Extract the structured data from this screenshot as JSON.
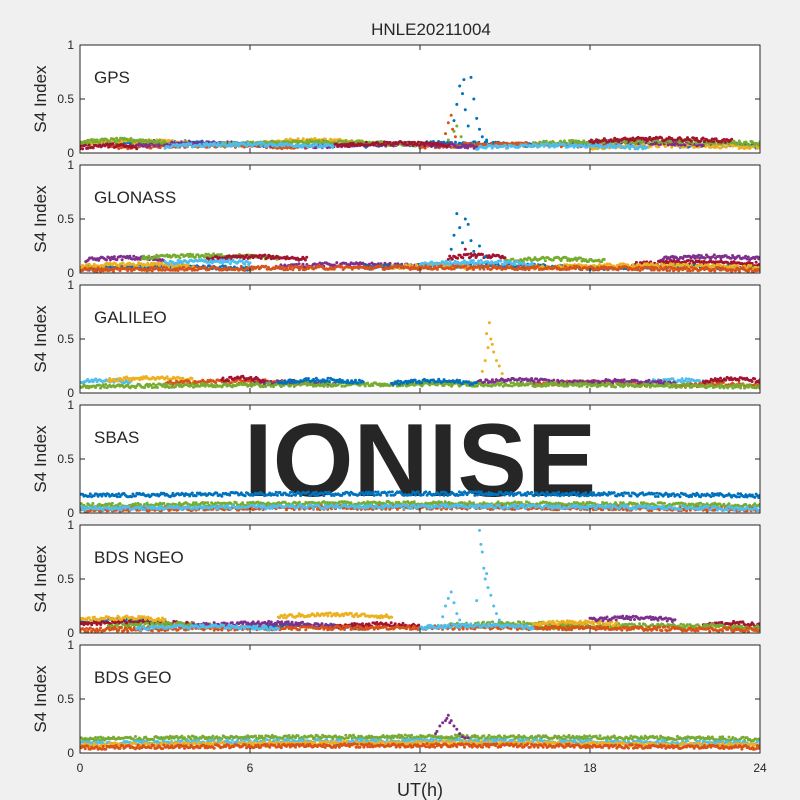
{
  "figure": {
    "title": "HNLE20211004",
    "watermark": "IONISE",
    "background": "#f0f0f0",
    "axes_background": "#ffffff",
    "watermark_color": "#e6e6e6"
  },
  "chart_data": {
    "type": "scatter",
    "title": "HNLE20211004",
    "xlabel": "UT(h)",
    "ylabel": "S4 Index",
    "xlim": [
      0,
      24
    ],
    "ylim": [
      0,
      1
    ],
    "xticks": [
      0,
      6,
      12,
      18,
      24
    ],
    "yticks": [
      0,
      0.5,
      1
    ],
    "ytick_labels": [
      "0",
      "0.5",
      "1"
    ],
    "grid": false,
    "color_order": [
      "#0072bd",
      "#d95319",
      "#edb120",
      "#7e2f8e",
      "#77ac30",
      "#4dbeee",
      "#a2142f"
    ],
    "panels": [
      {
        "label": "GPS",
        "baseline": 0.07,
        "background_tracks": [
          {
            "color": "#0072bd",
            "segments": [
              [
                0,
                5.5,
                0.08
              ],
              [
                10,
                16,
                0.07
              ],
              [
                21,
                24,
                0.06
              ]
            ]
          },
          {
            "color": "#d95319",
            "segments": [
              [
                1,
                8,
                0.05
              ],
              [
                12,
                19,
                0.06
              ]
            ]
          },
          {
            "color": "#edb120",
            "segments": [
              [
                0,
                4,
                0.09
              ],
              [
                6.5,
                10,
                0.1
              ],
              [
                18,
                24,
                0.05
              ]
            ]
          },
          {
            "color": "#7e2f8e",
            "segments": [
              [
                2,
                7,
                0.07
              ],
              [
                8,
                14,
                0.06
              ],
              [
                17,
                22,
                0.08
              ]
            ]
          },
          {
            "color": "#77ac30",
            "segments": [
              [
                0,
                3,
                0.1
              ],
              [
                5,
                12,
                0.08
              ],
              [
                16,
                24,
                0.09
              ]
            ]
          },
          {
            "color": "#4dbeee",
            "segments": [
              [
                3,
                9,
                0.06
              ],
              [
                14,
                20,
                0.05
              ]
            ]
          },
          {
            "color": "#a2142f",
            "segments": [
              [
                0,
                2,
                0.05
              ],
              [
                9,
                13,
                0.07
              ],
              [
                18,
                23,
                0.11
              ]
            ]
          }
        ],
        "events": [
          {
            "color": "#0072bd",
            "points": [
              [
                13.2,
                0.3
              ],
              [
                13.3,
                0.45
              ],
              [
                13.4,
                0.62
              ],
              [
                13.5,
                0.55
              ],
              [
                13.55,
                0.68
              ],
              [
                13.6,
                0.4
              ],
              [
                13.7,
                0.25
              ],
              [
                13.8,
                0.7
              ],
              [
                13.9,
                0.5
              ],
              [
                14.0,
                0.32
              ],
              [
                14.1,
                0.22
              ],
              [
                14.2,
                0.15
              ],
              [
                14.35,
                0.12
              ]
            ]
          },
          {
            "color": "#d95319",
            "points": [
              [
                12.9,
                0.18
              ],
              [
                13.0,
                0.28
              ],
              [
                13.1,
                0.35
              ],
              [
                13.15,
                0.22
              ],
              [
                13.25,
                0.15
              ]
            ]
          },
          {
            "color": "#77ac30",
            "points": [
              [
                13.0,
                0.12
              ],
              [
                13.2,
                0.2
              ],
              [
                13.3,
                0.25
              ],
              [
                13.45,
                0.15
              ]
            ]
          }
        ]
      },
      {
        "label": "GLONASS",
        "baseline": 0.06,
        "background_tracks": [
          {
            "color": "#7e2f8e",
            "segments": [
              [
                0.2,
                3,
                0.12
              ],
              [
                7,
                12,
                0.06
              ],
              [
                20.5,
                24,
                0.13
              ]
            ]
          },
          {
            "color": "#77ac30",
            "segments": [
              [
                2.2,
                7,
                0.14
              ],
              [
                15,
                18.5,
                0.11
              ]
            ]
          },
          {
            "color": "#a2142f",
            "segments": [
              [
                4.5,
                8,
                0.13
              ],
              [
                13,
                15,
                0.14
              ],
              [
                19.5,
                24,
                0.08
              ]
            ]
          },
          {
            "color": "#0072bd",
            "segments": [
              [
                0,
                6,
                0.04
              ],
              [
                10,
                18,
                0.05
              ],
              [
                18,
                24,
                0.04
              ]
            ]
          },
          {
            "color": "#edb120",
            "segments": [
              [
                0,
                4,
                0.06
              ],
              [
                11,
                14,
                0.05
              ],
              [
                16,
                24,
                0.05
              ]
            ]
          },
          {
            "color": "#4dbeee",
            "segments": [
              [
                3,
                6,
                0.09
              ],
              [
                12,
                16,
                0.08
              ]
            ]
          },
          {
            "color": "#d95319",
            "segments": [
              [
                0,
                24,
                0.03
              ]
            ]
          }
        ],
        "events": [
          {
            "color": "#0072bd",
            "points": [
              [
                13.2,
                0.35
              ],
              [
                13.3,
                0.55
              ],
              [
                13.4,
                0.42
              ],
              [
                13.5,
                0.28
              ],
              [
                13.6,
                0.5
              ],
              [
                13.7,
                0.45
              ],
              [
                13.8,
                0.3
              ],
              [
                13.9,
                0.2
              ],
              [
                14.1,
                0.25
              ],
              [
                14.3,
                0.15
              ],
              [
                13.1,
                0.22
              ]
            ]
          },
          {
            "color": "#a2142f",
            "points": [
              [
                13.6,
                0.22
              ],
              [
                13.8,
                0.18
              ],
              [
                14.0,
                0.16
              ]
            ]
          }
        ]
      },
      {
        "label": "GALILEO",
        "baseline": 0.07,
        "background_tracks": [
          {
            "color": "#4dbeee",
            "segments": [
              [
                0,
                1.8,
                0.1
              ],
              [
                20,
                22,
                0.1
              ]
            ]
          },
          {
            "color": "#edb120",
            "segments": [
              [
                1,
                4,
                0.12
              ],
              [
                11,
                14,
                0.08
              ]
            ]
          },
          {
            "color": "#d95319",
            "segments": [
              [
                3,
                8,
                0.09
              ],
              [
                16,
                20,
                0.08
              ],
              [
                21,
                24,
                0.06
              ]
            ]
          },
          {
            "color": "#7e2f8e",
            "segments": [
              [
                6,
                9,
                0.08
              ],
              [
                14,
                17,
                0.1
              ],
              [
                17,
                21,
                0.09
              ]
            ]
          },
          {
            "color": "#77ac30",
            "segments": [
              [
                0,
                24,
                0.06
              ]
            ]
          },
          {
            "color": "#0072bd",
            "segments": [
              [
                7,
                10,
                0.1
              ],
              [
                11,
                14,
                0.09
              ]
            ]
          },
          {
            "color": "#a2142f",
            "segments": [
              [
                5,
                6.5,
                0.12
              ],
              [
                22,
                24,
                0.11
              ]
            ]
          }
        ],
        "events": [
          {
            "color": "#edb120",
            "points": [
              [
                14.2,
                0.2
              ],
              [
                14.3,
                0.3
              ],
              [
                14.4,
                0.42
              ],
              [
                14.45,
                0.65
              ],
              [
                14.5,
                0.5
              ],
              [
                14.6,
                0.38
              ],
              [
                14.7,
                0.3
              ],
              [
                14.8,
                0.25
              ],
              [
                14.9,
                0.18
              ],
              [
                14.35,
                0.55
              ],
              [
                14.55,
                0.45
              ]
            ]
          }
        ]
      },
      {
        "label": "SBAS",
        "baseline": 0.16,
        "background_tracks": [
          {
            "color": "#0072bd",
            "segments": [
              [
                0,
                24,
                0.16
              ]
            ]
          },
          {
            "color": "#77ac30",
            "segments": [
              [
                0,
                24,
                0.07
              ]
            ]
          },
          {
            "color": "#d95319",
            "segments": [
              [
                0,
                24,
                0.03
              ]
            ]
          },
          {
            "color": "#4dbeee",
            "segments": [
              [
                0,
                24,
                0.04
              ]
            ]
          }
        ],
        "events": []
      },
      {
        "label": "BDS NGEO",
        "baseline": 0.06,
        "background_tracks": [
          {
            "color": "#0072bd",
            "segments": [
              [
                0,
                3,
                0.1
              ],
              [
                6,
                10,
                0.05
              ]
            ]
          },
          {
            "color": "#a2142f",
            "segments": [
              [
                0,
                4,
                0.08
              ],
              [
                9,
                12,
                0.06
              ],
              [
                22,
                24,
                0.07
              ]
            ]
          },
          {
            "color": "#77ac30",
            "segments": [
              [
                1,
                5,
                0.06
              ],
              [
                13,
                18,
                0.07
              ],
              [
                16,
                24,
                0.05
              ]
            ]
          },
          {
            "color": "#edb120",
            "segments": [
              [
                0,
                3,
                0.12
              ],
              [
                7,
                11,
                0.15
              ],
              [
                16,
                19,
                0.08
              ]
            ]
          },
          {
            "color": "#7e2f8e",
            "segments": [
              [
                4,
                9,
                0.07
              ],
              [
                18,
                21,
                0.12
              ]
            ]
          },
          {
            "color": "#d95319",
            "segments": [
              [
                0,
                24,
                0.03
              ]
            ]
          },
          {
            "color": "#4dbeee",
            "segments": [
              [
                2,
                7,
                0.04
              ],
              [
                12,
                16,
                0.05
              ]
            ]
          }
        ],
        "events": [
          {
            "color": "#4dbeee",
            "points": [
              [
                12.8,
                0.15
              ],
              [
                12.9,
                0.25
              ],
              [
                13.0,
                0.32
              ],
              [
                13.1,
                0.38
              ],
              [
                13.2,
                0.28
              ],
              [
                13.3,
                0.18
              ],
              [
                13.4,
                0.12
              ],
              [
                14.0,
                0.3
              ],
              [
                14.1,
                0.95
              ],
              [
                14.2,
                0.75
              ],
              [
                14.25,
                0.6
              ],
              [
                14.3,
                0.5
              ],
              [
                14.4,
                0.42
              ],
              [
                14.5,
                0.35
              ],
              [
                14.6,
                0.25
              ],
              [
                14.7,
                0.18
              ],
              [
                14.8,
                0.12
              ],
              [
                14.15,
                0.82
              ],
              [
                14.35,
                0.55
              ]
            ]
          }
        ]
      },
      {
        "label": "BDS GEO",
        "baseline": 0.12,
        "background_tracks": [
          {
            "color": "#77ac30",
            "segments": [
              [
                0,
                24,
                0.13
              ]
            ]
          },
          {
            "color": "#4dbeee",
            "segments": [
              [
                0,
                24,
                0.09
              ]
            ]
          },
          {
            "color": "#edb120",
            "segments": [
              [
                0,
                24,
                0.07
              ]
            ]
          },
          {
            "color": "#d95319",
            "segments": [
              [
                0,
                24,
                0.05
              ]
            ]
          }
        ],
        "events": [
          {
            "color": "#7e2f8e",
            "points": [
              [
                12.6,
                0.2
              ],
              [
                12.7,
                0.25
              ],
              [
                12.8,
                0.28
              ],
              [
                12.9,
                0.3
              ],
              [
                13.0,
                0.35
              ],
              [
                13.1,
                0.3
              ],
              [
                13.2,
                0.25
              ],
              [
                13.3,
                0.22
              ],
              [
                13.4,
                0.18
              ],
              [
                13.5,
                0.15
              ],
              [
                13.6,
                0.14
              ],
              [
                13.7,
                0.14
              ],
              [
                12.55,
                0.18
              ],
              [
                12.95,
                0.32
              ],
              [
                13.05,
                0.28
              ]
            ]
          }
        ]
      }
    ]
  }
}
